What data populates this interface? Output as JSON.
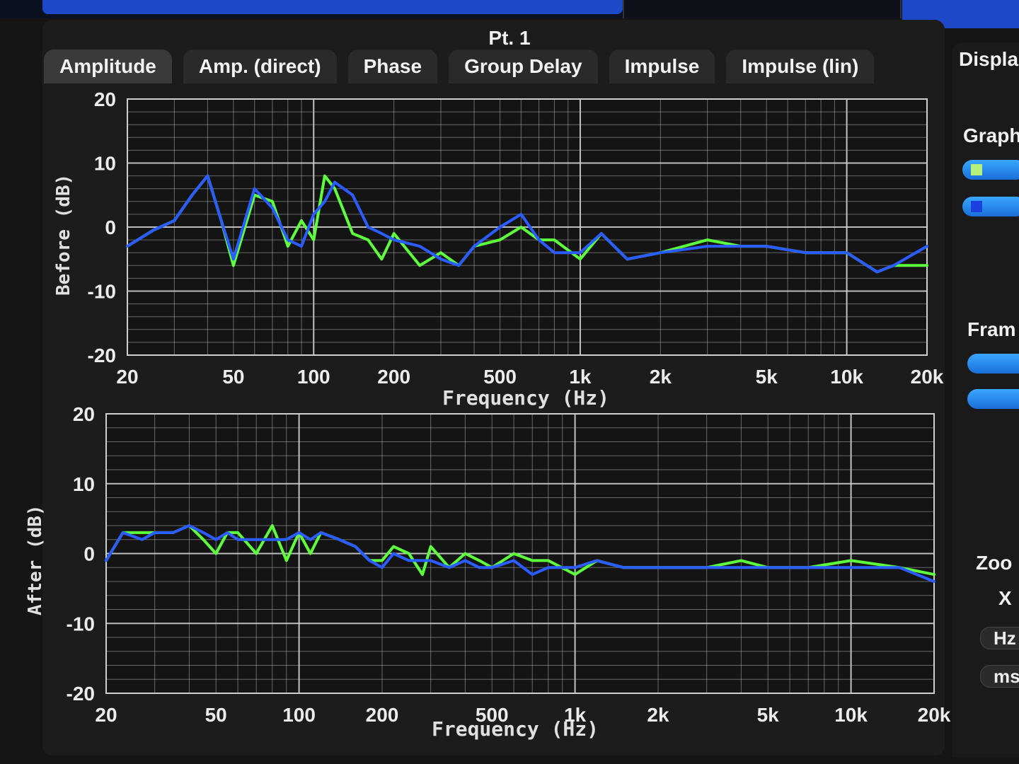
{
  "window": {
    "point_title": "Pt. 1"
  },
  "tabs": [
    "Amplitude",
    "Amp. (direct)",
    "Phase",
    "Group Delay",
    "Impulse",
    "Impulse (lin)"
  ],
  "right_panel": {
    "display_label": "Displa",
    "graph_label": "Graph",
    "frame_label": "Fram",
    "zoom_label": "Zoo",
    "x_label": "X",
    "hz_button": "Hz",
    "ms_button": "ms",
    "trace_colors": [
      "#b6f07a",
      "#1c3fe0"
    ]
  },
  "colors": {
    "series_green": "#5dff3c",
    "series_blue": "#2a5cff",
    "grid": "#cfcfcf",
    "plot_bg": "#141414"
  },
  "chart_data": [
    {
      "type": "line",
      "ylabel": "Before (dB)",
      "xlabel": "Frequency (Hz)",
      "x_scale": "log",
      "xlim": [
        20,
        20000
      ],
      "ylim": [
        -20,
        20
      ],
      "x_ticks": [
        20,
        50,
        100,
        200,
        500,
        1000,
        2000,
        5000,
        10000,
        20000
      ],
      "x_tick_labels": [
        "20",
        "50",
        "100",
        "200",
        "500",
        "1k",
        "2k",
        "5k",
        "10k",
        "20k"
      ],
      "y_ticks": [
        20,
        10,
        0,
        -10,
        -20
      ],
      "grid": true,
      "series": [
        {
          "color": "green",
          "x": [
            20,
            25,
            30,
            35,
            40,
            45,
            50,
            60,
            70,
            80,
            90,
            100,
            110,
            120,
            140,
            160,
            180,
            200,
            250,
            300,
            350,
            400,
            500,
            600,
            700,
            800,
            1000,
            1200,
            1500,
            2000,
            3000,
            4000,
            5000,
            7000,
            10000,
            13000,
            15000,
            20000
          ],
          "y": [
            -3,
            -0.5,
            1,
            5,
            8,
            1,
            -6,
            5,
            4,
            -3,
            1,
            -2,
            8,
            6,
            -1,
            -2,
            -5,
            -1,
            -6,
            -4,
            -6,
            -3,
            -2,
            0,
            -2,
            -2,
            -5,
            -1,
            -5,
            -4,
            -2,
            -3,
            -3,
            -4,
            -4,
            -7,
            -6,
            -6
          ]
        },
        {
          "color": "blue",
          "x": [
            20,
            25,
            30,
            35,
            40,
            45,
            50,
            60,
            70,
            80,
            90,
            100,
            110,
            120,
            140,
            160,
            180,
            200,
            250,
            300,
            350,
            400,
            500,
            600,
            700,
            800,
            1000,
            1200,
            1500,
            2000,
            3000,
            4000,
            5000,
            7000,
            10000,
            13000,
            15000,
            20000
          ],
          "y": [
            -3,
            -0.5,
            1,
            5,
            8,
            1,
            -5,
            6,
            3,
            -2,
            -3,
            2,
            4,
            7,
            5,
            0,
            -1,
            -2,
            -3,
            -5,
            -6,
            -3,
            0,
            2,
            -2,
            -4,
            -4,
            -1,
            -5,
            -4,
            -3,
            -3,
            -3,
            -4,
            -4,
            -7,
            -6,
            -3
          ]
        }
      ]
    },
    {
      "type": "line",
      "ylabel": "After (dB)",
      "xlabel": "Frequency (Hz)",
      "x_scale": "log",
      "xlim": [
        20,
        20000
      ],
      "ylim": [
        -20,
        20
      ],
      "x_ticks": [
        20,
        50,
        100,
        200,
        500,
        1000,
        2000,
        5000,
        10000,
        20000
      ],
      "x_tick_labels": [
        "20",
        "50",
        "100",
        "200",
        "500",
        "1k",
        "2k",
        "5k",
        "10k",
        "20k"
      ],
      "y_ticks": [
        20,
        10,
        0,
        -10,
        -20
      ],
      "grid": true,
      "series": [
        {
          "color": "green",
          "x": [
            20,
            23,
            27,
            30,
            35,
            40,
            45,
            50,
            55,
            60,
            70,
            80,
            90,
            100,
            110,
            120,
            140,
            160,
            180,
            200,
            220,
            250,
            280,
            300,
            350,
            400,
            450,
            500,
            600,
            700,
            800,
            1000,
            1200,
            1500,
            2000,
            3000,
            4000,
            5000,
            7000,
            10000,
            15000,
            20000
          ],
          "y": [
            -1,
            3,
            3,
            3,
            3,
            4,
            2,
            0,
            3,
            3,
            0,
            4,
            -1,
            3,
            0,
            3,
            2,
            1,
            -1,
            -1,
            1,
            0,
            -3,
            1,
            -2,
            0,
            -1,
            -2,
            0,
            -1,
            -1,
            -3,
            -1,
            -2,
            -2,
            -2,
            -1,
            -2,
            -2,
            -1,
            -2,
            -3
          ]
        },
        {
          "color": "blue",
          "x": [
            20,
            23,
            27,
            30,
            35,
            40,
            45,
            50,
            55,
            60,
            70,
            80,
            90,
            100,
            110,
            120,
            140,
            160,
            180,
            200,
            220,
            250,
            280,
            300,
            350,
            400,
            450,
            500,
            600,
            700,
            800,
            1000,
            1200,
            1500,
            2000,
            3000,
            4000,
            5000,
            7000,
            10000,
            15000,
            20000
          ],
          "y": [
            -1,
            3,
            2,
            3,
            3,
            4,
            3,
            2,
            3,
            2,
            2,
            2,
            2,
            3,
            2,
            3,
            2,
            1,
            -1,
            -2,
            0,
            -1,
            -1,
            -1,
            -2,
            -1,
            -2,
            -2,
            -1,
            -3,
            -2,
            -2,
            -1,
            -2,
            -2,
            -2,
            -2,
            -2,
            -2,
            -2,
            -2,
            -4
          ]
        }
      ]
    }
  ]
}
